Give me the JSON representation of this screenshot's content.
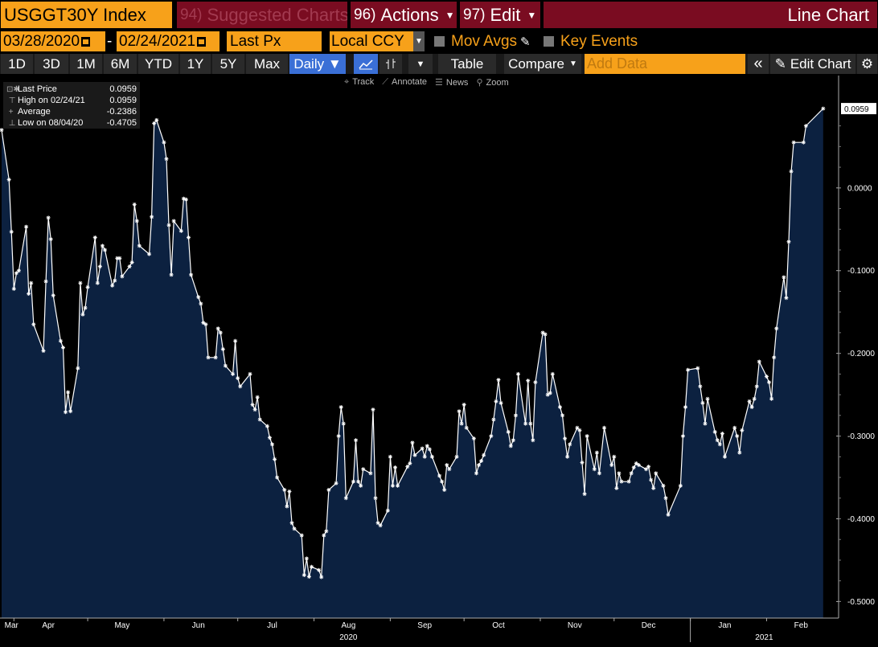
{
  "header": {
    "ticker": "USGGT30Y Index",
    "suggested_num": "94)",
    "suggested_label": "Suggested Charts",
    "actions_num": "96)",
    "actions_label": "Actions",
    "edit_num": "97)",
    "edit_label": "Edit",
    "title": "Line Chart"
  },
  "controls": {
    "start_date": "03/28/2020",
    "end_date": "02/24/2021",
    "dash": "-",
    "field": "Last Px",
    "currency": "Local CCY",
    "mov_avgs": "Mov Avgs",
    "key_events": "Key Events"
  },
  "toolbar": {
    "periods": [
      "1D",
      "3D",
      "1M",
      "6M",
      "YTD",
      "1Y",
      "5Y",
      "Max"
    ],
    "frequency": "Daily ▼",
    "table": "Table",
    "compare": "Compare",
    "add_data_placeholder": "Add Data",
    "edit_chart": "Edit Chart"
  },
  "chart_tools": [
    "Track",
    "Annotate",
    "News",
    "Zoom"
  ],
  "legend": {
    "rows": [
      {
        "label": "Last Price",
        "value": "0.0959"
      },
      {
        "label": "High on 02/24/21",
        "value": "0.0959"
      },
      {
        "label": "Average",
        "value": "-0.2386"
      },
      {
        "label": "Low on 08/04/20",
        "value": "-0.4705"
      }
    ]
  },
  "colors": {
    "orange": "#f7a11a",
    "maroon": "#7a0c21",
    "fill": "#0c2140",
    "line": "#ffffff"
  },
  "chart_data": {
    "type": "area",
    "title": "",
    "series_name": "USGGT30Y Index",
    "ylim": [
      -0.52,
      0.13
    ],
    "y_ticks": [
      "0.0000",
      "-0.1000",
      "-0.2000",
      "-0.3000",
      "-0.4000",
      "-0.5000"
    ],
    "y_tick_values": [
      0.0,
      -0.1,
      -0.2,
      -0.3,
      -0.4,
      -0.5
    ],
    "last_value_label": "0.0959",
    "x_months": [
      {
        "label": "Mar",
        "date": "2020-03-31"
      },
      {
        "label": "Apr",
        "date": "2020-04-15"
      },
      {
        "label": "May",
        "date": "2020-05-15"
      },
      {
        "label": "Jun",
        "date": "2020-06-15"
      },
      {
        "label": "Jul",
        "date": "2020-07-15"
      },
      {
        "label": "Aug",
        "date": "2020-08-15"
      },
      {
        "label": "Sep",
        "date": "2020-09-15"
      },
      {
        "label": "Oct",
        "date": "2020-10-15"
      },
      {
        "label": "Nov",
        "date": "2020-11-15"
      },
      {
        "label": "Dec",
        "date": "2020-12-15"
      },
      {
        "label": "Jan",
        "date": "2021-01-15"
      },
      {
        "label": "Feb",
        "date": "2021-02-15"
      }
    ],
    "x_years": [
      {
        "label": "2020",
        "date": "2020-08-15"
      },
      {
        "label": "2021",
        "date": "2021-01-31"
      }
    ],
    "x_range": [
      "2020-03-27",
      "2021-02-27"
    ],
    "points": [
      [
        "2020-03-27",
        0.07
      ],
      [
        "2020-03-30",
        0.01
      ],
      [
        "2020-03-31",
        -0.053
      ],
      [
        "2020-04-01",
        -0.122
      ],
      [
        "2020-04-02",
        -0.103
      ],
      [
        "2020-04-03",
        -0.1
      ],
      [
        "2020-04-06",
        -0.047
      ],
      [
        "2020-04-07",
        -0.128
      ],
      [
        "2020-04-08",
        -0.115
      ],
      [
        "2020-04-09",
        -0.165
      ],
      [
        "2020-04-13",
        -0.197
      ],
      [
        "2020-04-14",
        -0.113
      ],
      [
        "2020-04-15",
        -0.036
      ],
      [
        "2020-04-16",
        -0.062
      ],
      [
        "2020-04-17",
        -0.13
      ],
      [
        "2020-04-20",
        -0.185
      ],
      [
        "2020-04-21",
        -0.193
      ],
      [
        "2020-04-22",
        -0.271
      ],
      [
        "2020-04-23",
        -0.247
      ],
      [
        "2020-04-24",
        -0.27
      ],
      [
        "2020-04-27",
        -0.218
      ],
      [
        "2020-04-28",
        -0.115
      ],
      [
        "2020-04-29",
        -0.153
      ],
      [
        "2020-04-30",
        -0.145
      ],
      [
        "2020-05-01",
        -0.12
      ],
      [
        "2020-05-04",
        -0.06
      ],
      [
        "2020-05-05",
        -0.115
      ],
      [
        "2020-05-06",
        -0.095
      ],
      [
        "2020-05-07",
        -0.07
      ],
      [
        "2020-05-08",
        -0.075
      ],
      [
        "2020-05-11",
        -0.118
      ],
      [
        "2020-05-12",
        -0.112
      ],
      [
        "2020-05-13",
        -0.085
      ],
      [
        "2020-05-14",
        -0.085
      ],
      [
        "2020-05-15",
        -0.107
      ],
      [
        "2020-05-18",
        -0.095
      ],
      [
        "2020-05-19",
        -0.09
      ],
      [
        "2020-05-20",
        -0.02
      ],
      [
        "2020-05-21",
        -0.04
      ],
      [
        "2020-05-22",
        -0.07
      ],
      [
        "2020-05-26",
        -0.08
      ],
      [
        "2020-05-27",
        -0.035
      ],
      [
        "2020-05-28",
        0.078
      ],
      [
        "2020-05-29",
        0.082
      ],
      [
        "2020-06-01",
        0.055
      ],
      [
        "2020-06-02",
        0.035
      ],
      [
        "2020-06-03",
        -0.045
      ],
      [
        "2020-06-04",
        -0.105
      ],
      [
        "2020-06-05",
        -0.04
      ],
      [
        "2020-06-08",
        -0.052
      ],
      [
        "2020-06-09",
        -0.013
      ],
      [
        "2020-06-10",
        -0.014
      ],
      [
        "2020-06-11",
        -0.06
      ],
      [
        "2020-06-12",
        -0.105
      ],
      [
        "2020-06-15",
        -0.132
      ],
      [
        "2020-06-16",
        -0.14
      ],
      [
        "2020-06-17",
        -0.163
      ],
      [
        "2020-06-18",
        -0.165
      ],
      [
        "2020-06-19",
        -0.205
      ],
      [
        "2020-06-22",
        -0.205
      ],
      [
        "2020-06-23",
        -0.17
      ],
      [
        "2020-06-24",
        -0.175
      ],
      [
        "2020-06-25",
        -0.195
      ],
      [
        "2020-06-26",
        -0.215
      ],
      [
        "2020-06-29",
        -0.225
      ],
      [
        "2020-06-30",
        -0.185
      ],
      [
        "2020-07-01",
        -0.23
      ],
      [
        "2020-07-02",
        -0.24
      ],
      [
        "2020-07-06",
        -0.225
      ],
      [
        "2020-07-07",
        -0.262
      ],
      [
        "2020-07-08",
        -0.268
      ],
      [
        "2020-07-09",
        -0.253
      ],
      [
        "2020-07-10",
        -0.28
      ],
      [
        "2020-07-13",
        -0.288
      ],
      [
        "2020-07-14",
        -0.302
      ],
      [
        "2020-07-15",
        -0.31
      ],
      [
        "2020-07-16",
        -0.328
      ],
      [
        "2020-07-17",
        -0.35
      ],
      [
        "2020-07-20",
        -0.365
      ],
      [
        "2020-07-21",
        -0.385
      ],
      [
        "2020-07-22",
        -0.367
      ],
      [
        "2020-07-23",
        -0.405
      ],
      [
        "2020-07-24",
        -0.412
      ],
      [
        "2020-07-27",
        -0.42
      ],
      [
        "2020-07-28",
        -0.468
      ],
      [
        "2020-07-29",
        -0.448
      ],
      [
        "2020-07-30",
        -0.47
      ],
      [
        "2020-07-31",
        -0.458
      ],
      [
        "2020-08-03",
        -0.462
      ],
      [
        "2020-08-04",
        -0.4705
      ],
      [
        "2020-08-05",
        -0.42
      ],
      [
        "2020-08-06",
        -0.415
      ],
      [
        "2020-08-07",
        -0.365
      ],
      [
        "2020-08-10",
        -0.357
      ],
      [
        "2020-08-11",
        -0.3
      ],
      [
        "2020-08-12",
        -0.265
      ],
      [
        "2020-08-13",
        -0.285
      ],
      [
        "2020-08-14",
        -0.375
      ],
      [
        "2020-08-17",
        -0.355
      ],
      [
        "2020-08-18",
        -0.305
      ],
      [
        "2020-08-19",
        -0.355
      ],
      [
        "2020-08-20",
        -0.36
      ],
      [
        "2020-08-21",
        -0.34
      ],
      [
        "2020-08-24",
        -0.345
      ],
      [
        "2020-08-25",
        -0.268
      ],
      [
        "2020-08-26",
        -0.375
      ],
      [
        "2020-08-27",
        -0.405
      ],
      [
        "2020-08-28",
        -0.408
      ],
      [
        "2020-08-31",
        -0.39
      ],
      [
        "2020-09-01",
        -0.325
      ],
      [
        "2020-09-02",
        -0.36
      ],
      [
        "2020-09-03",
        -0.338
      ],
      [
        "2020-09-04",
        -0.36
      ],
      [
        "2020-09-08",
        -0.337
      ],
      [
        "2020-09-09",
        -0.333
      ],
      [
        "2020-09-10",
        -0.308
      ],
      [
        "2020-09-11",
        -0.323
      ],
      [
        "2020-09-14",
        -0.315
      ],
      [
        "2020-09-15",
        -0.325
      ],
      [
        "2020-09-16",
        -0.312
      ],
      [
        "2020-09-17",
        -0.316
      ],
      [
        "2020-09-18",
        -0.325
      ],
      [
        "2020-09-21",
        -0.348
      ],
      [
        "2020-09-22",
        -0.355
      ],
      [
        "2020-09-23",
        -0.365
      ],
      [
        "2020-09-24",
        -0.335
      ],
      [
        "2020-09-25",
        -0.34
      ],
      [
        "2020-09-28",
        -0.325
      ],
      [
        "2020-09-29",
        -0.27
      ],
      [
        "2020-09-30",
        -0.285
      ],
      [
        "2020-10-01",
        -0.262
      ],
      [
        "2020-10-02",
        -0.29
      ],
      [
        "2020-10-05",
        -0.303
      ],
      [
        "2020-10-06",
        -0.345
      ],
      [
        "2020-10-07",
        -0.335
      ],
      [
        "2020-10-08",
        -0.33
      ],
      [
        "2020-10-09",
        -0.323
      ],
      [
        "2020-10-12",
        -0.3
      ],
      [
        "2020-10-13",
        -0.28
      ],
      [
        "2020-10-14",
        -0.258
      ],
      [
        "2020-10-15",
        -0.232
      ],
      [
        "2020-10-16",
        -0.26
      ],
      [
        "2020-10-19",
        -0.295
      ],
      [
        "2020-10-20",
        -0.312
      ],
      [
        "2020-10-21",
        -0.305
      ],
      [
        "2020-10-22",
        -0.275
      ],
      [
        "2020-10-23",
        -0.225
      ],
      [
        "2020-10-26",
        -0.285
      ],
      [
        "2020-10-27",
        -0.233
      ],
      [
        "2020-10-28",
        -0.285
      ],
      [
        "2020-10-29",
        -0.305
      ],
      [
        "2020-10-30",
        -0.235
      ],
      [
        "2020-11-02",
        -0.175
      ],
      [
        "2020-11-03",
        -0.177
      ],
      [
        "2020-11-04",
        -0.25
      ],
      [
        "2020-11-05",
        -0.248
      ],
      [
        "2020-11-06",
        -0.225
      ],
      [
        "2020-11-09",
        -0.265
      ],
      [
        "2020-11-10",
        -0.275
      ],
      [
        "2020-11-11",
        -0.303
      ],
      [
        "2020-11-12",
        -0.325
      ],
      [
        "2020-11-13",
        -0.31
      ],
      [
        "2020-11-16",
        -0.29
      ],
      [
        "2020-11-17",
        -0.293
      ],
      [
        "2020-11-18",
        -0.332
      ],
      [
        "2020-11-19",
        -0.37
      ],
      [
        "2020-11-20",
        -0.3
      ],
      [
        "2020-11-23",
        -0.34
      ],
      [
        "2020-11-24",
        -0.32
      ],
      [
        "2020-11-25",
        -0.345
      ],
      [
        "2020-11-27",
        -0.29
      ],
      [
        "2020-11-30",
        -0.335
      ],
      [
        "2020-12-01",
        -0.325
      ],
      [
        "2020-12-02",
        -0.363
      ],
      [
        "2020-12-03",
        -0.345
      ],
      [
        "2020-12-04",
        -0.355
      ],
      [
        "2020-12-07",
        -0.355
      ],
      [
        "2020-12-08",
        -0.345
      ],
      [
        "2020-12-09",
        -0.338
      ],
      [
        "2020-12-10",
        -0.333
      ],
      [
        "2020-12-11",
        -0.335
      ],
      [
        "2020-12-14",
        -0.34
      ],
      [
        "2020-12-15",
        -0.337
      ],
      [
        "2020-12-16",
        -0.353
      ],
      [
        "2020-12-17",
        -0.363
      ],
      [
        "2020-12-18",
        -0.345
      ],
      [
        "2020-12-21",
        -0.36
      ],
      [
        "2020-12-22",
        -0.375
      ],
      [
        "2020-12-23",
        -0.395
      ],
      [
        "2020-12-28",
        -0.36
      ],
      [
        "2020-12-29",
        -0.3
      ],
      [
        "2020-12-30",
        -0.265
      ],
      [
        "2020-12-31",
        -0.22
      ],
      [
        "2021-01-04",
        -0.218
      ],
      [
        "2021-01-05",
        -0.24
      ],
      [
        "2021-01-06",
        -0.26
      ],
      [
        "2021-01-07",
        -0.285
      ],
      [
        "2021-01-08",
        -0.255
      ],
      [
        "2021-01-11",
        -0.295
      ],
      [
        "2021-01-12",
        -0.305
      ],
      [
        "2021-01-13",
        -0.31
      ],
      [
        "2021-01-14",
        -0.297
      ],
      [
        "2021-01-15",
        -0.325
      ],
      [
        "2021-01-19",
        -0.29
      ],
      [
        "2021-01-20",
        -0.3
      ],
      [
        "2021-01-21",
        -0.32
      ],
      [
        "2021-01-22",
        -0.293
      ],
      [
        "2021-01-25",
        -0.258
      ],
      [
        "2021-01-26",
        -0.265
      ],
      [
        "2021-01-27",
        -0.255
      ],
      [
        "2021-01-28",
        -0.24
      ],
      [
        "2021-01-29",
        -0.21
      ],
      [
        "2021-02-01",
        -0.228
      ],
      [
        "2021-02-02",
        -0.235
      ],
      [
        "2021-02-03",
        -0.255
      ],
      [
        "2021-02-04",
        -0.205
      ],
      [
        "2021-02-05",
        -0.17
      ],
      [
        "2021-02-08",
        -0.108
      ],
      [
        "2021-02-09",
        -0.133
      ],
      [
        "2021-02-10",
        -0.065
      ],
      [
        "2021-02-11",
        0.02
      ],
      [
        "2021-02-12",
        0.055
      ],
      [
        "2021-02-16",
        0.055
      ],
      [
        "2021-02-17",
        0.075
      ],
      [
        "2021-02-24",
        0.0959
      ]
    ]
  }
}
